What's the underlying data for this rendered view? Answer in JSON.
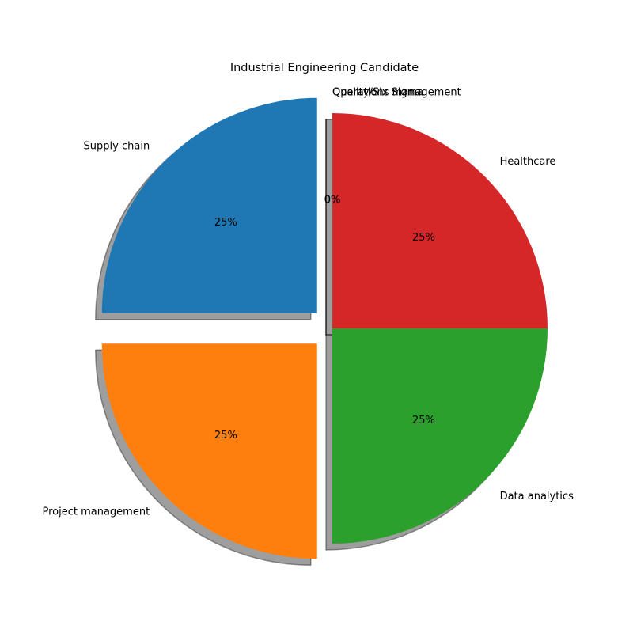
{
  "chart_data": {
    "type": "pie",
    "title": "Industrial Engineering Candidate",
    "categories": [
      "Supply chain",
      "Project management",
      "Data analytics",
      "Healthcare",
      "Quality/Six Sigma",
      "Operations management"
    ],
    "values": [
      25,
      25,
      25,
      25,
      0,
      0
    ],
    "percent_labels": [
      "25%",
      "25%",
      "25%",
      "25%",
      "0%",
      "0%"
    ],
    "colors": [
      "#1f77b4",
      "#ff7f0e",
      "#2ca02c",
      "#d62728",
      "#9467bd",
      "#8c564b"
    ],
    "exploded": [
      "Supply chain",
      "Project management"
    ],
    "shadow": true,
    "start_angle_deg": 90,
    "direction": "counterclockwise",
    "legend": "none"
  }
}
